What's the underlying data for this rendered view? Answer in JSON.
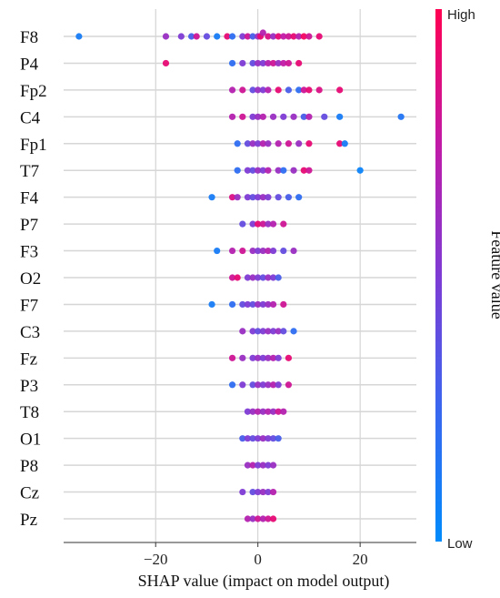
{
  "chart_data": {
    "type": "scatter",
    "subtype": "shap-beeswarm-summary",
    "title": "",
    "xlabel": "SHAP value (impact on model output)",
    "ylabel": "",
    "xlim": [
      -38,
      31
    ],
    "xticks": [
      -20,
      0,
      20
    ],
    "xtick_labels": [
      "−20",
      "0",
      "20"
    ],
    "grid": "vertical lines at x ticks",
    "features": [
      "F8",
      "P4",
      "Fp2",
      "C4",
      "Fp1",
      "T7",
      "F4",
      "P7",
      "F3",
      "O2",
      "F7",
      "C3",
      "Fz",
      "P3",
      "T8",
      "O1",
      "P8",
      "Cz",
      "Pz"
    ],
    "colorbar": {
      "title": "Feature value",
      "high_label": "High",
      "low_label": "Low",
      "high_color": "#ff0052",
      "low_color": "#008bfb"
    },
    "series": [
      {
        "feature": "F8",
        "points": [
          [
            -35,
            0.1
          ],
          [
            -18,
            0.6
          ],
          [
            -15,
            0.5
          ],
          [
            -13,
            0.3
          ],
          [
            -12,
            0.8
          ],
          [
            -10,
            0.4
          ],
          [
            -8,
            0.1
          ],
          [
            -6,
            0.9
          ],
          [
            -5,
            0.2
          ],
          [
            -3,
            0.5
          ],
          [
            -2,
            0.8
          ],
          [
            -1,
            0.3
          ],
          [
            0,
            0.6
          ],
          [
            0.5,
            0.9
          ],
          [
            1,
            0.7
          ],
          [
            2,
            0.85
          ],
          [
            3,
            0.6
          ],
          [
            4,
            0.9
          ],
          [
            5,
            0.75
          ],
          [
            6,
            0.8
          ],
          [
            7,
            0.9
          ],
          [
            8,
            0.7
          ],
          [
            9,
            0.95
          ],
          [
            10,
            0.8
          ],
          [
            12,
            0.9
          ]
        ]
      },
      {
        "feature": "P4",
        "points": [
          [
            -18,
            0.9
          ],
          [
            -5,
            0.2
          ],
          [
            -3,
            0.5
          ],
          [
            -1,
            0.4
          ],
          [
            0,
            0.6
          ],
          [
            1,
            0.5
          ],
          [
            2,
            0.7
          ],
          [
            3,
            0.8
          ],
          [
            4,
            0.6
          ],
          [
            5,
            0.75
          ],
          [
            6,
            0.8
          ],
          [
            8,
            0.9
          ]
        ]
      },
      {
        "feature": "Fp2",
        "points": [
          [
            -5,
            0.7
          ],
          [
            -3,
            0.8
          ],
          [
            -1,
            0.4
          ],
          [
            0,
            0.6
          ],
          [
            1,
            0.5
          ],
          [
            2,
            0.7
          ],
          [
            4,
            0.9
          ],
          [
            6,
            0.3
          ],
          [
            8,
            0.2
          ],
          [
            9,
            0.8
          ],
          [
            10,
            0.9
          ],
          [
            12,
            0.85
          ],
          [
            16,
            0.9
          ]
        ]
      },
      {
        "feature": "C4",
        "points": [
          [
            -5,
            0.7
          ],
          [
            -3,
            0.8
          ],
          [
            -1,
            0.5
          ],
          [
            0,
            0.6
          ],
          [
            1,
            0.7
          ],
          [
            3,
            0.6
          ],
          [
            5,
            0.5
          ],
          [
            7,
            0.6
          ],
          [
            9,
            0.3
          ],
          [
            10,
            0.7
          ],
          [
            13,
            0.4
          ],
          [
            16,
            0.1
          ],
          [
            28,
            0.15
          ]
        ]
      },
      {
        "feature": "Fp1",
        "points": [
          [
            -4,
            0.2
          ],
          [
            -2,
            0.4
          ],
          [
            -1,
            0.6
          ],
          [
            0,
            0.5
          ],
          [
            1,
            0.7
          ],
          [
            2,
            0.6
          ],
          [
            4,
            0.7
          ],
          [
            6,
            0.8
          ],
          [
            8,
            0.6
          ],
          [
            10,
            0.9
          ],
          [
            16,
            0.9
          ],
          [
            17,
            0.1
          ]
        ]
      },
      {
        "feature": "T7",
        "points": [
          [
            -4,
            0.2
          ],
          [
            -2,
            0.5
          ],
          [
            -1,
            0.4
          ],
          [
            0,
            0.6
          ],
          [
            1,
            0.5
          ],
          [
            2,
            0.7
          ],
          [
            4,
            0.6
          ],
          [
            5,
            0.2
          ],
          [
            7,
            0.6
          ],
          [
            9,
            0.9
          ],
          [
            10,
            0.8
          ],
          [
            20,
            0.05
          ]
        ]
      },
      {
        "feature": "F4",
        "points": [
          [
            -9,
            0.1
          ],
          [
            -5,
            0.85
          ],
          [
            -4,
            0.6
          ],
          [
            -2,
            0.5
          ],
          [
            -1,
            0.4
          ],
          [
            0,
            0.5
          ],
          [
            1,
            0.6
          ],
          [
            2,
            0.5
          ],
          [
            4,
            0.4
          ],
          [
            6,
            0.3
          ],
          [
            8,
            0.2
          ]
        ]
      },
      {
        "feature": "P7",
        "points": [
          [
            -3,
            0.4
          ],
          [
            -1,
            0.5
          ],
          [
            0,
            0.9
          ],
          [
            1,
            0.8
          ],
          [
            2,
            0.6
          ],
          [
            3,
            0.7
          ],
          [
            5,
            0.8
          ]
        ]
      },
      {
        "feature": "F3",
        "points": [
          [
            -8,
            0.1
          ],
          [
            -5,
            0.7
          ],
          [
            -3,
            0.8
          ],
          [
            -1,
            0.6
          ],
          [
            0,
            0.5
          ],
          [
            1,
            0.6
          ],
          [
            2,
            0.7
          ],
          [
            3,
            0.5
          ],
          [
            5,
            0.4
          ],
          [
            7,
            0.6
          ]
        ]
      },
      {
        "feature": "O2",
        "points": [
          [
            -5,
            0.8
          ],
          [
            -4,
            0.9
          ],
          [
            -2,
            0.5
          ],
          [
            -1,
            0.6
          ],
          [
            0,
            0.5
          ],
          [
            1,
            0.4
          ],
          [
            2,
            0.6
          ],
          [
            3,
            0.5
          ],
          [
            4,
            0.3
          ]
        ]
      },
      {
        "feature": "F7",
        "points": [
          [
            -9,
            0.1
          ],
          [
            -5,
            0.2
          ],
          [
            -3,
            0.4
          ],
          [
            -2,
            0.5
          ],
          [
            -1,
            0.4
          ],
          [
            0,
            0.6
          ],
          [
            1,
            0.5
          ],
          [
            2,
            0.6
          ],
          [
            3,
            0.7
          ],
          [
            5,
            0.8
          ]
        ]
      },
      {
        "feature": "C3",
        "points": [
          [
            -3,
            0.6
          ],
          [
            -1,
            0.5
          ],
          [
            0,
            0.4
          ],
          [
            1,
            0.5
          ],
          [
            2,
            0.6
          ],
          [
            3,
            0.5
          ],
          [
            4,
            0.6
          ],
          [
            5,
            0.4
          ],
          [
            7,
            0.2
          ]
        ]
      },
      {
        "feature": "Fz",
        "points": [
          [
            -5,
            0.8
          ],
          [
            -3,
            0.6
          ],
          [
            -1,
            0.5
          ],
          [
            0,
            0.6
          ],
          [
            1,
            0.5
          ],
          [
            2,
            0.6
          ],
          [
            3,
            0.7
          ],
          [
            4,
            0.5
          ],
          [
            6,
            0.9
          ]
        ]
      },
      {
        "feature": "P3",
        "points": [
          [
            -5,
            0.2
          ],
          [
            -3,
            0.5
          ],
          [
            -1,
            0.4
          ],
          [
            0,
            0.6
          ],
          [
            1,
            0.5
          ],
          [
            2,
            0.6
          ],
          [
            3,
            0.7
          ],
          [
            4,
            0.5
          ],
          [
            6,
            0.8
          ]
        ]
      },
      {
        "feature": "T8",
        "points": [
          [
            -2,
            0.5
          ],
          [
            -1,
            0.6
          ],
          [
            0,
            0.7
          ],
          [
            1,
            0.6
          ],
          [
            2,
            0.7
          ],
          [
            3,
            0.6
          ],
          [
            4,
            0.8
          ],
          [
            5,
            0.7
          ]
        ]
      },
      {
        "feature": "O1",
        "points": [
          [
            -3,
            0.3
          ],
          [
            -2,
            0.5
          ],
          [
            -1,
            0.4
          ],
          [
            0,
            0.5
          ],
          [
            1,
            0.6
          ],
          [
            2,
            0.5
          ],
          [
            3,
            0.4
          ],
          [
            4,
            0.3
          ]
        ]
      },
      {
        "feature": "P8",
        "points": [
          [
            -2,
            0.6
          ],
          [
            -1,
            0.7
          ],
          [
            0,
            0.5
          ],
          [
            1,
            0.6
          ],
          [
            2,
            0.5
          ],
          [
            3,
            0.6
          ]
        ]
      },
      {
        "feature": "Cz",
        "points": [
          [
            -3,
            0.5
          ],
          [
            -1,
            0.4
          ],
          [
            0,
            0.5
          ],
          [
            1,
            0.6
          ],
          [
            2,
            0.5
          ],
          [
            3,
            0.7
          ]
        ]
      },
      {
        "feature": "Pz",
        "points": [
          [
            -2,
            0.7
          ],
          [
            -1,
            0.6
          ],
          [
            0,
            0.8
          ],
          [
            1,
            0.7
          ],
          [
            2,
            0.8
          ],
          [
            3,
            0.9
          ]
        ]
      }
    ]
  }
}
